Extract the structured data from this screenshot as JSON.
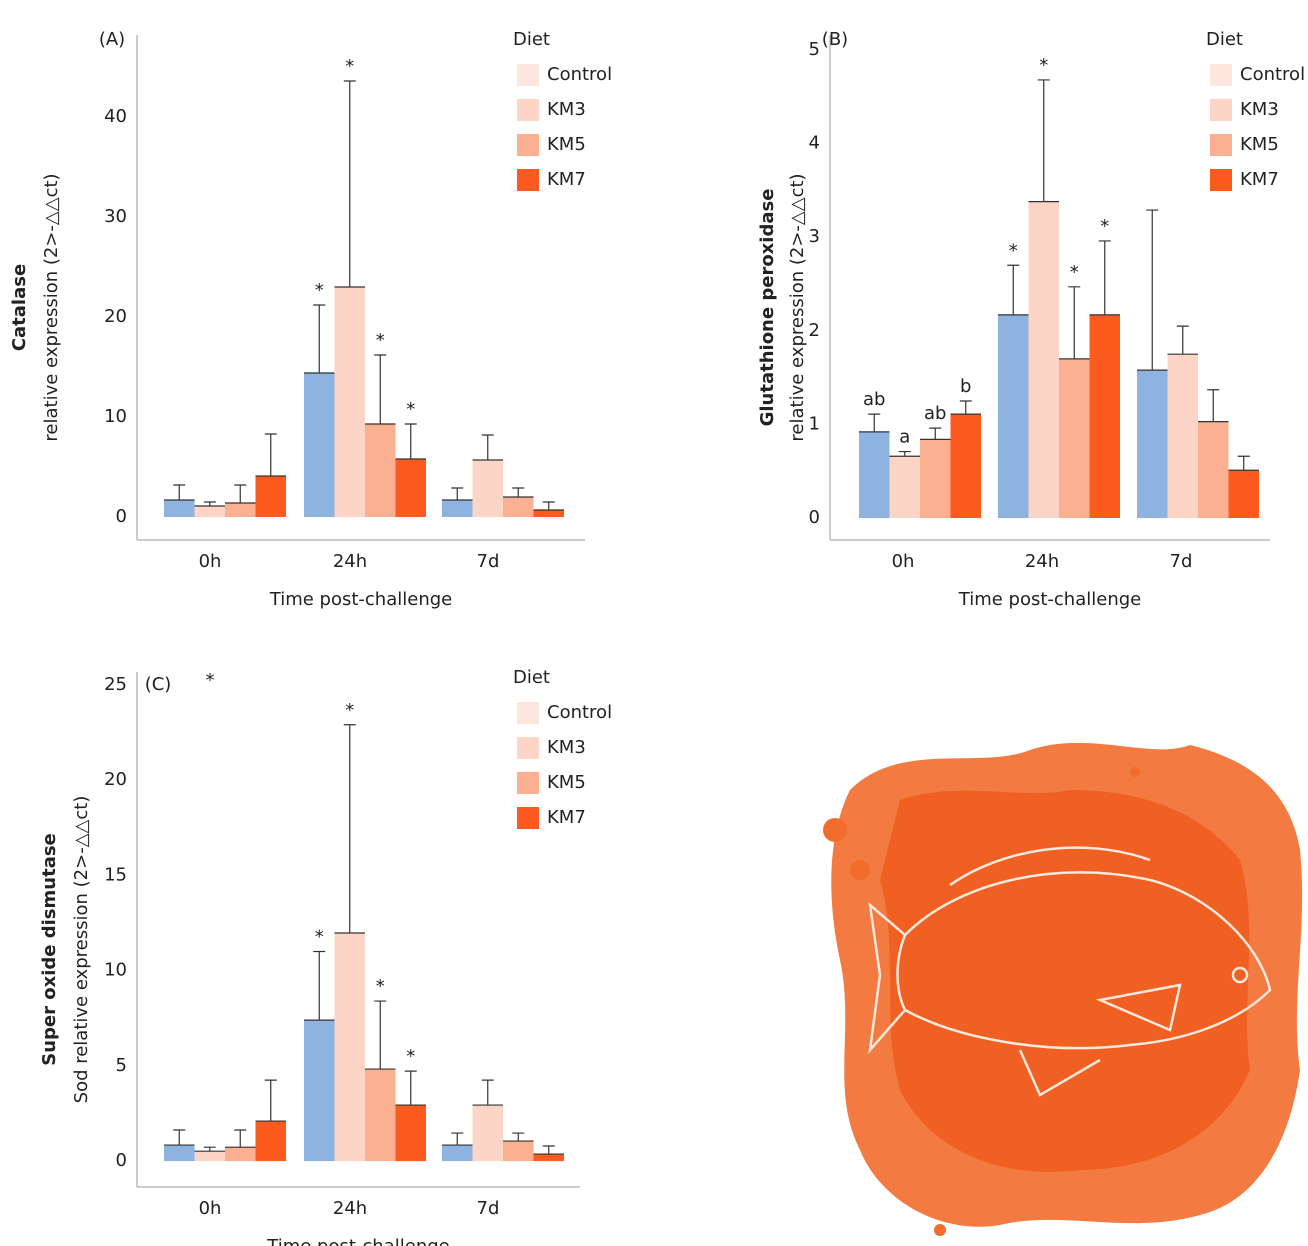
{
  "chart_data": [
    {
      "type": "bar",
      "panel": "(A)",
      "y_title": "Catalase",
      "y_label": "relative expression (2>-△△ct)",
      "x_label": "Time post-challenge",
      "legend_title": "Diet",
      "categories": [
        "0h",
        "24h",
        "7d"
      ],
      "ylim": [
        -2.3,
        48.2
      ],
      "yticks": [
        0,
        10,
        20,
        30,
        40
      ],
      "series": [
        {
          "name": "Control",
          "color": "#8fb3e0",
          "legend_color": "#fde6dd",
          "values": [
            1.7,
            14.4,
            1.7
          ],
          "errors": [
            1.5,
            6.8,
            1.2
          ],
          "labels": [
            null,
            "*",
            null
          ]
        },
        {
          "name": "KM3",
          "color": "#fdd5c6",
          "legend_color": "#fdd5c6",
          "values": [
            1.1,
            23.0,
            5.7
          ],
          "errors": [
            0.4,
            20.6,
            2.5
          ],
          "labels": [
            null,
            "*",
            null
          ]
        },
        {
          "name": "KM5",
          "color": "#fbb091",
          "legend_color": "#fbb091",
          "values": [
            1.4,
            9.3,
            2.0
          ],
          "errors": [
            1.8,
            6.9,
            0.9
          ],
          "labels": [
            null,
            "*",
            null
          ]
        },
        {
          "name": "KM7",
          "color": "#fc5a1e",
          "legend_color": "#fc5a1e",
          "values": [
            4.1,
            5.8,
            0.7
          ],
          "errors": [
            4.2,
            3.5,
            0.8
          ],
          "labels": [
            null,
            "*",
            null
          ]
        }
      ]
    },
    {
      "type": "bar",
      "panel": "(B)",
      "y_title": "Glutathione peroxidase",
      "y_label": "relative expression (2>-△△ct)",
      "x_label": "Time post-challenge",
      "legend_title": "Diet",
      "categories": [
        "0h",
        "24h",
        "7d"
      ],
      "ylim": [
        -0.235,
        5.16
      ],
      "yticks": [
        0,
        1,
        2,
        3,
        4,
        5
      ],
      "series": [
        {
          "name": "Control",
          "color": "#8fb3e0",
          "legend_color": "#fde6dd",
          "values": [
            0.92,
            2.17,
            1.58
          ],
          "errors": [
            0.19,
            0.53,
            1.71
          ],
          "labels": [
            "ab",
            "*",
            null
          ]
        },
        {
          "name": "KM3",
          "color": "#fdd5c6",
          "legend_color": "#fdd5c6",
          "values": [
            0.66,
            3.38,
            1.75
          ],
          "errors": [
            0.05,
            1.3,
            0.3
          ],
          "labels": [
            "a",
            "*",
            null
          ]
        },
        {
          "name": "KM5",
          "color": "#fbb091",
          "legend_color": "#fbb091",
          "values": [
            0.84,
            1.7,
            1.03
          ],
          "errors": [
            0.12,
            0.77,
            0.34
          ],
          "labels": [
            "ab",
            "*",
            null
          ]
        },
        {
          "name": "KM7",
          "color": "#fc5a1e",
          "legend_color": "#fc5a1e",
          "values": [
            1.11,
            2.17,
            0.51
          ],
          "errors": [
            0.14,
            0.79,
            0.15
          ],
          "labels": [
            "b",
            "*",
            null
          ]
        }
      ]
    },
    {
      "type": "bar",
      "panel": "(C)",
      "note": "*",
      "y_title": "Super oxide dismutase",
      "y_label": "Sod relative expression (2>-△△ct)",
      "x_label": "Time post-challenge",
      "legend_title": "Diet",
      "categories": [
        "0h",
        "24h",
        "7d"
      ],
      "ylim": [
        -1.36,
        25.67
      ],
      "yticks": [
        0,
        5,
        10,
        15,
        20,
        25
      ],
      "series": [
        {
          "name": "Control",
          "color": "#8fb3e0",
          "legend_color": "#fde6dd",
          "values": [
            0.84,
            7.4,
            0.84
          ],
          "errors": [
            0.79,
            3.6,
            0.63
          ],
          "labels": [
            null,
            "*",
            null
          ]
        },
        {
          "name": "KM3",
          "color": "#fdd5c6",
          "legend_color": "#fdd5c6",
          "values": [
            0.52,
            11.97,
            2.94
          ],
          "errors": [
            0.21,
            10.93,
            1.31
          ],
          "labels": [
            null,
            "*",
            null
          ]
        },
        {
          "name": "KM5",
          "color": "#fbb091",
          "legend_color": "#fbb091",
          "values": [
            0.73,
            4.83,
            1.05
          ],
          "errors": [
            0.9,
            3.57,
            0.42
          ],
          "labels": [
            null,
            "*",
            null
          ]
        },
        {
          "name": "KM7",
          "color": "#fc5a1e",
          "legend_color": "#fc5a1e",
          "values": [
            2.1,
            2.94,
            0.37
          ],
          "errors": [
            2.15,
            1.78,
            0.42
          ],
          "labels": [
            null,
            "*",
            null
          ]
        }
      ]
    }
  ]
}
